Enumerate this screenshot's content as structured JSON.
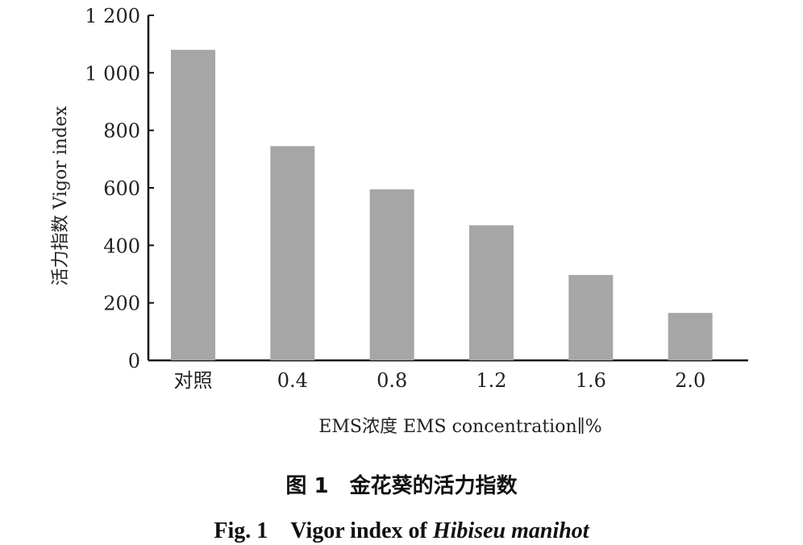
{
  "chart_data": {
    "type": "bar",
    "categories": [
      "对照",
      "0.4",
      "0.8",
      "1.2",
      "1.6",
      "2.0"
    ],
    "values": [
      1080,
      745,
      595,
      470,
      297,
      165
    ],
    "ylim": [
      0,
      1200
    ],
    "yticks": [
      0,
      200,
      400,
      600,
      800,
      1000,
      1200
    ],
    "ytick_labels": [
      "0",
      "200",
      "400",
      "600",
      "800",
      "1 000",
      "1 200"
    ],
    "xlabel": "EMS浓度 EMS concentration∥%",
    "ylabel": "活力指数 Vigor index",
    "bar_color": "#a6a6a6",
    "grid": false
  },
  "caption": {
    "cn": "图 1　金花葵的活力指数",
    "en_prefix": "Fig. 1　Vigor index of ",
    "en_species": "Hibiseu manihot"
  }
}
